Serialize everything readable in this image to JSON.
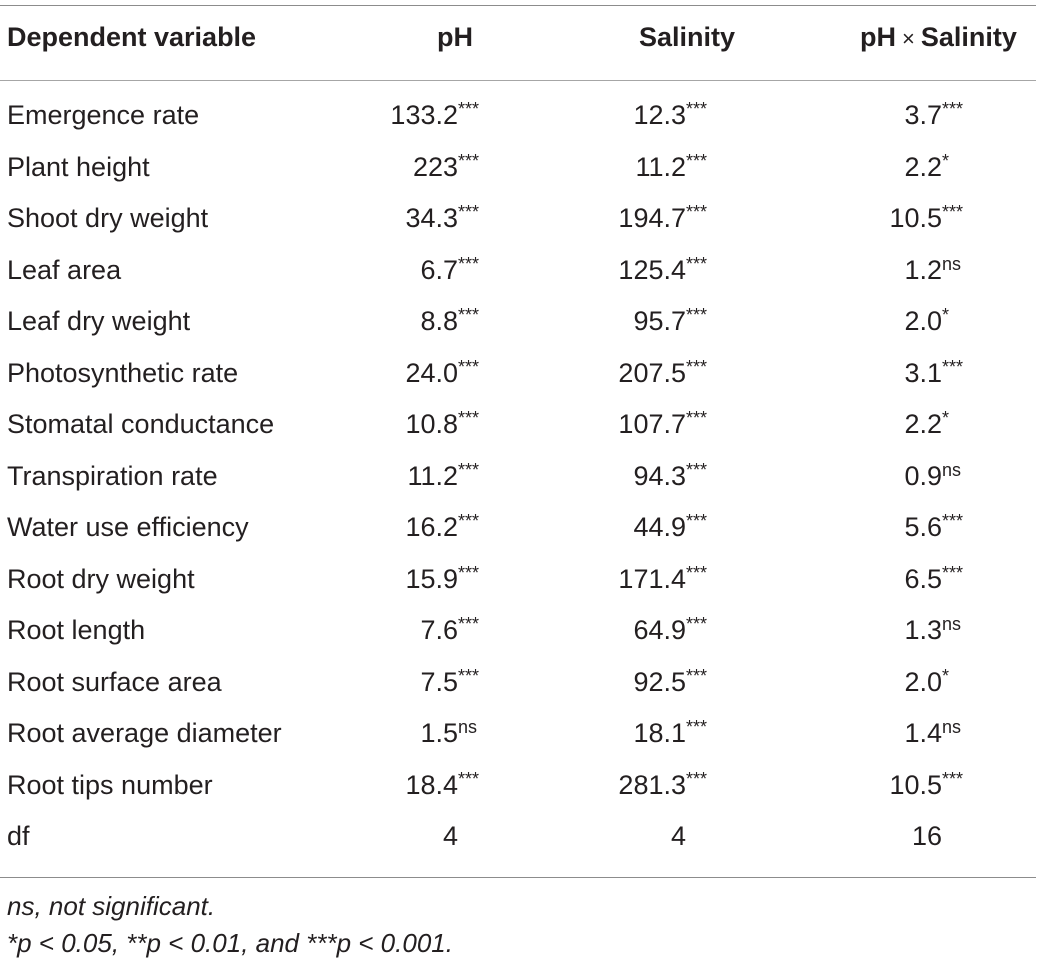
{
  "table": {
    "headers": {
      "dependent": "Dependent variable",
      "ph": "pH",
      "salinity": "Salinity",
      "interaction_a": "pH",
      "interaction_x": "×",
      "interaction_b": "Salinity"
    },
    "rows": [
      {
        "name": "Emergence rate",
        "ph": "133.2",
        "ph_sig": "***",
        "sal": "12.3",
        "sal_sig": "***",
        "int": "3.7",
        "int_sig": "***"
      },
      {
        "name": "Plant height",
        "ph": "223",
        "ph_sig": "***",
        "sal": "11.2",
        "sal_sig": "***",
        "int": "2.2",
        "int_sig": "*"
      },
      {
        "name": "Shoot dry weight",
        "ph": "34.3",
        "ph_sig": "***",
        "sal": "194.7",
        "sal_sig": "***",
        "int": "10.5",
        "int_sig": "***"
      },
      {
        "name": "Leaf area",
        "ph": "6.7",
        "ph_sig": "***",
        "sal": "125.4",
        "sal_sig": "***",
        "int": "1.2",
        "int_sig": "ns"
      },
      {
        "name": "Leaf dry weight",
        "ph": "8.8",
        "ph_sig": "***",
        "sal": "95.7",
        "sal_sig": "***",
        "int": "2.0",
        "int_sig": "*"
      },
      {
        "name": "Photosynthetic rate",
        "ph": "24.0",
        "ph_sig": "***",
        "sal": "207.5",
        "sal_sig": "***",
        "int": "3.1",
        "int_sig": "***"
      },
      {
        "name": "Stomatal conductance",
        "ph": "10.8",
        "ph_sig": "***",
        "sal": "107.7",
        "sal_sig": "***",
        "int": "2.2",
        "int_sig": "*"
      },
      {
        "name": "Transpiration rate",
        "ph": "11.2",
        "ph_sig": "***",
        "sal": "94.3",
        "sal_sig": "***",
        "int": "0.9",
        "int_sig": "ns"
      },
      {
        "name": "Water use efficiency",
        "ph": "16.2",
        "ph_sig": "***",
        "sal": "44.9",
        "sal_sig": "***",
        "int": "5.6",
        "int_sig": "***"
      },
      {
        "name": "Root dry weight",
        "ph": "15.9",
        "ph_sig": "***",
        "sal": "171.4",
        "sal_sig": "***",
        "int": "6.5",
        "int_sig": "***"
      },
      {
        "name": "Root length",
        "ph": "7.6",
        "ph_sig": "***",
        "sal": "64.9",
        "sal_sig": "***",
        "int": "1.3",
        "int_sig": "ns"
      },
      {
        "name": "Root surface area",
        "ph": "7.5",
        "ph_sig": "***",
        "sal": "92.5",
        "sal_sig": "***",
        "int": "2.0",
        "int_sig": "*"
      },
      {
        "name": "Root average diameter",
        "ph": "1.5",
        "ph_sig": "ns",
        "sal": "18.1",
        "sal_sig": "***",
        "int": "1.4",
        "int_sig": "ns"
      },
      {
        "name": "Root tips number",
        "ph": "18.4",
        "ph_sig": "***",
        "sal": "281.3",
        "sal_sig": "***",
        "int": "10.5",
        "int_sig": "***"
      },
      {
        "name": "df",
        "ph": "4",
        "ph_sig": "",
        "sal": "4",
        "sal_sig": "",
        "int": "16",
        "int_sig": ""
      }
    ]
  },
  "footnotes": {
    "ns": "ns, not significant.",
    "p": "*p < 0.05, **p < 0.01, and ***p < 0.001."
  }
}
